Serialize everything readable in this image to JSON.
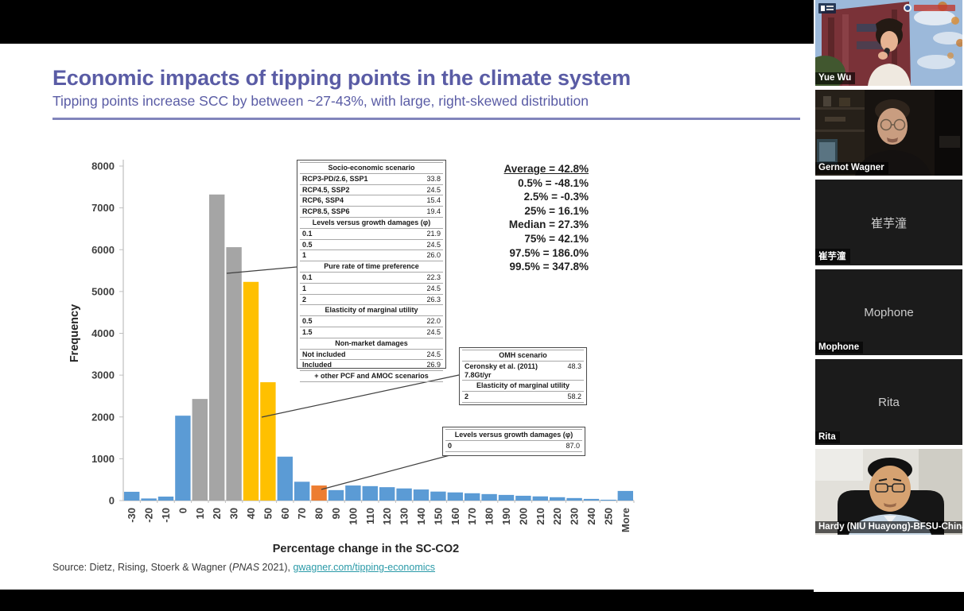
{
  "slide": {
    "title": "Economic impacts of tipping points in the climate system",
    "subtitle": "Tipping points increase SCC by between ~27-43%, with large, right-skewed distribution",
    "accent_color": "#5a5ca5",
    "rule_color": "#8185bb",
    "source": {
      "prefix": "Source: Dietz, Rising, Stoerk & Wagner (",
      "journal": "PNAS",
      "suffix": " 2021), ",
      "link_text": "gwagner.com/tipping-economics",
      "link_color": "#2a9aa8"
    }
  },
  "chart_data": {
    "type": "bar",
    "title": "",
    "xlabel": "Percentage change in the SC-CO2",
    "ylabel": "Frequency",
    "ylim": [
      0,
      8000
    ],
    "ytick_step": 1000,
    "grid": false,
    "legend": null,
    "categories": [
      "-30",
      "-20",
      "-10",
      "0",
      "10",
      "20",
      "30",
      "40",
      "50",
      "60",
      "70",
      "80",
      "90",
      "100",
      "110",
      "120",
      "130",
      "140",
      "150",
      "160",
      "170",
      "180",
      "190",
      "200",
      "210",
      "220",
      "230",
      "240",
      "250",
      "More"
    ],
    "values": [
      210,
      50,
      95,
      2030,
      2430,
      7320,
      6060,
      5230,
      2830,
      1050,
      450,
      360,
      250,
      360,
      345,
      320,
      290,
      265,
      215,
      195,
      175,
      155,
      135,
      115,
      100,
      80,
      60,
      40,
      20,
      230
    ],
    "colors": [
      "#5B9BD5",
      "#5B9BD5",
      "#5B9BD5",
      "#5B9BD5",
      "#A5A5A5",
      "#A5A5A5",
      "#A5A5A5",
      "#FFC000",
      "#FFC000",
      "#5B9BD5",
      "#5B9BD5",
      "#ED7D31",
      "#5B9BD5",
      "#5B9BD5",
      "#5B9BD5",
      "#5B9BD5",
      "#5B9BD5",
      "#5B9BD5",
      "#5B9BD5",
      "#5B9BD5",
      "#5B9BD5",
      "#5B9BD5",
      "#5B9BD5",
      "#5B9BD5",
      "#5B9BD5",
      "#5B9BD5",
      "#5B9BD5",
      "#5B9BD5",
      "#5B9BD5",
      "#5B9BD5"
    ]
  },
  "stats": {
    "lines": [
      {
        "text": "Average = 42.8%",
        "underline": true
      },
      {
        "text": "0.5% = -48.1%"
      },
      {
        "text": "2.5% = -0.3%"
      },
      {
        "text": "25% = 16.1%"
      },
      {
        "text": "Median = 27.3%"
      },
      {
        "text": "75% = 42.1%"
      },
      {
        "text": "97.5% = 186.0%"
      },
      {
        "text": "99.5% = 347.8%"
      }
    ]
  },
  "tables": {
    "scenario": {
      "rows": [
        {
          "header": "Socio-economic scenario"
        },
        {
          "label": "RCP3-PD/2.6, SSP1",
          "value": "33.8"
        },
        {
          "label": "RCP4.5, SSP2",
          "value": "24.5"
        },
        {
          "label": "RCP6, SSP4",
          "value": "15.4"
        },
        {
          "label": "RCP8.5, SSP6",
          "value": "19.4"
        },
        {
          "header": "Levels versus growth damages (φ)"
        },
        {
          "label": "0.1",
          "value": "21.9"
        },
        {
          "label": "0.5",
          "value": "24.5"
        },
        {
          "label": "1",
          "value": "26.0"
        },
        {
          "header": "Pure rate of time preference"
        },
        {
          "label": "0.1",
          "value": "22.3"
        },
        {
          "label": "1",
          "value": "24.5"
        },
        {
          "label": "2",
          "value": "26.3"
        },
        {
          "header": "Elasticity of marginal utility"
        },
        {
          "label": "0.5",
          "value": "22.0"
        },
        {
          "label": "1.5",
          "value": "24.5"
        },
        {
          "header": "Non-market damages"
        },
        {
          "label": "Not included",
          "value": "24.5"
        },
        {
          "label": "Included",
          "value": "26.9"
        },
        {
          "header": "+ other PCF and AMOC scenarios"
        }
      ]
    },
    "omh": {
      "rows": [
        {
          "header": "OMH scenario"
        },
        {
          "label": "Ceronsky et al. (2011) 7.8Gt/yr",
          "value": "48.3"
        },
        {
          "header": "Elasticity of marginal utility"
        },
        {
          "label": "2",
          "value": "58.2"
        }
      ]
    },
    "levels": {
      "rows": [
        {
          "header": "Levels versus growth damages (φ)"
        },
        {
          "label": "0",
          "value": "87.0"
        }
      ]
    }
  },
  "participants": [
    {
      "name": "Yue Wu"
    },
    {
      "name": "Gernot Wagner"
    },
    {
      "name": "崔芋潼",
      "center": "崔芋潼"
    },
    {
      "name": "Mophone",
      "center": "Mophone"
    },
    {
      "name": "Rita",
      "center": "Rita"
    },
    {
      "name": "Hardy (NIU Huayong)-BFSU-China"
    }
  ]
}
